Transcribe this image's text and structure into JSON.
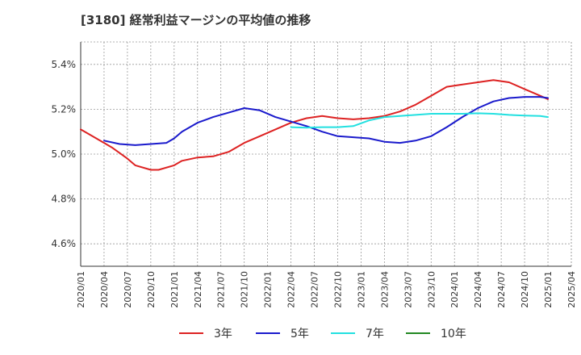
{
  "chart_data": {
    "type": "line",
    "title": "[3180]  経常利益マージンの平均値の推移",
    "xlabel": "",
    "ylabel": "",
    "ylim": [
      4.5,
      5.5
    ],
    "yticks": [
      4.6,
      4.8,
      5.0,
      5.2,
      5.4
    ],
    "ytick_labels": [
      "4.6%",
      "4.8%",
      "5.0%",
      "5.2%",
      "5.4%"
    ],
    "x_range": [
      "2020-01",
      "2025-04"
    ],
    "xtick_labels": [
      "2020/01",
      "2020/04",
      "2020/07",
      "2020/10",
      "2021/01",
      "2021/04",
      "2021/07",
      "2021/10",
      "2022/01",
      "2022/04",
      "2022/07",
      "2022/10",
      "2023/01",
      "2023/04",
      "2023/07",
      "2023/10",
      "2024/01",
      "2024/04",
      "2024/07",
      "2024/10",
      "2025/01",
      "2025/04"
    ],
    "grid": true,
    "legend_position": "bottom",
    "series": [
      {
        "name": "3年",
        "color": "#dd2222",
        "points": [
          [
            "2020-01",
            5.11
          ],
          [
            "2020-03",
            5.07
          ],
          [
            "2020-05",
            5.03
          ],
          [
            "2020-07",
            4.98
          ],
          [
            "2020-08",
            4.95
          ],
          [
            "2020-10",
            4.93
          ],
          [
            "2020-11",
            4.93
          ],
          [
            "2021-01",
            4.95
          ],
          [
            "2021-02",
            4.97
          ],
          [
            "2021-04",
            4.985
          ],
          [
            "2021-06",
            4.99
          ],
          [
            "2021-08",
            5.01
          ],
          [
            "2021-10",
            5.05
          ],
          [
            "2021-12",
            5.08
          ],
          [
            "2022-02",
            5.11
          ],
          [
            "2022-04",
            5.14
          ],
          [
            "2022-06",
            5.16
          ],
          [
            "2022-08",
            5.17
          ],
          [
            "2022-10",
            5.16
          ],
          [
            "2022-12",
            5.155
          ],
          [
            "2023-02",
            5.16
          ],
          [
            "2023-04",
            5.17
          ],
          [
            "2023-06",
            5.19
          ],
          [
            "2023-08",
            5.22
          ],
          [
            "2023-10",
            5.26
          ],
          [
            "2023-12",
            5.3
          ],
          [
            "2024-02",
            5.31
          ],
          [
            "2024-04",
            5.32
          ],
          [
            "2024-06",
            5.33
          ],
          [
            "2024-08",
            5.32
          ],
          [
            "2024-10",
            5.29
          ],
          [
            "2024-12",
            5.26
          ],
          [
            "2025-01",
            5.245
          ]
        ]
      },
      {
        "name": "5年",
        "color": "#1a1acc",
        "points": [
          [
            "2020-04",
            5.06
          ],
          [
            "2020-06",
            5.045
          ],
          [
            "2020-08",
            5.04
          ],
          [
            "2020-10",
            5.045
          ],
          [
            "2020-12",
            5.05
          ],
          [
            "2021-01",
            5.07
          ],
          [
            "2021-02",
            5.1
          ],
          [
            "2021-04",
            5.14
          ],
          [
            "2021-06",
            5.165
          ],
          [
            "2021-08",
            5.185
          ],
          [
            "2021-10",
            5.205
          ],
          [
            "2021-12",
            5.195
          ],
          [
            "2022-02",
            5.165
          ],
          [
            "2022-04",
            5.145
          ],
          [
            "2022-06",
            5.125
          ],
          [
            "2022-08",
            5.1
          ],
          [
            "2022-10",
            5.08
          ],
          [
            "2022-12",
            5.075
          ],
          [
            "2023-02",
            5.07
          ],
          [
            "2023-04",
            5.055
          ],
          [
            "2023-06",
            5.05
          ],
          [
            "2023-08",
            5.06
          ],
          [
            "2023-10",
            5.08
          ],
          [
            "2023-12",
            5.12
          ],
          [
            "2024-02",
            5.165
          ],
          [
            "2024-04",
            5.205
          ],
          [
            "2024-06",
            5.235
          ],
          [
            "2024-08",
            5.25
          ],
          [
            "2024-10",
            5.255
          ],
          [
            "2024-12",
            5.255
          ],
          [
            "2025-01",
            5.25
          ]
        ]
      },
      {
        "name": "7年",
        "color": "#22e0e0",
        "points": [
          [
            "2022-04",
            5.12
          ],
          [
            "2022-06",
            5.118
          ],
          [
            "2022-08",
            5.12
          ],
          [
            "2022-10",
            5.12
          ],
          [
            "2022-12",
            5.125
          ],
          [
            "2023-02",
            5.15
          ],
          [
            "2023-04",
            5.165
          ],
          [
            "2023-06",
            5.17
          ],
          [
            "2023-08",
            5.175
          ],
          [
            "2023-10",
            5.18
          ],
          [
            "2023-12",
            5.18
          ],
          [
            "2024-02",
            5.18
          ],
          [
            "2024-04",
            5.182
          ],
          [
            "2024-06",
            5.18
          ],
          [
            "2024-08",
            5.175
          ],
          [
            "2024-10",
            5.172
          ],
          [
            "2024-12",
            5.17
          ],
          [
            "2025-01",
            5.165
          ]
        ]
      },
      {
        "name": "10年",
        "color": "#228822",
        "points": []
      }
    ]
  }
}
